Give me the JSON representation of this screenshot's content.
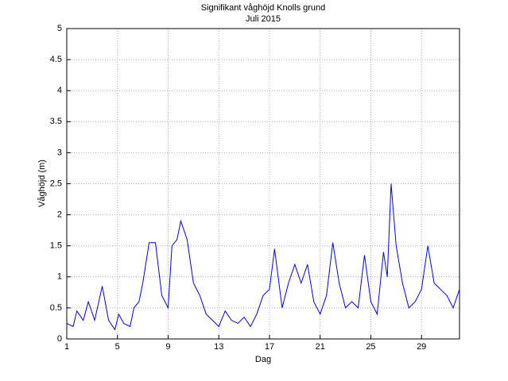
{
  "chart_data": {
    "type": "line",
    "title": "Signifikant våghöjd Knolls grund",
    "subtitle": "Juli 2015",
    "xlabel": "Dag",
    "ylabel": "Våghöjd (m)",
    "x": [
      1,
      1.5,
      1.8,
      2.3,
      2.7,
      3.2,
      3.8,
      4.3,
      4.8,
      5.1,
      5.5,
      6,
      6.3,
      6.7,
      7,
      7.5,
      8,
      8.5,
      9,
      9.3,
      9.7,
      10,
      10.5,
      11,
      11.5,
      12,
      12.5,
      13,
      13.5,
      14,
      14.5,
      15,
      15.5,
      16,
      16.5,
      17,
      17.4,
      18,
      18.5,
      19,
      19.5,
      20,
      20.5,
      21,
      21.5,
      22,
      22.5,
      23,
      23.5,
      24,
      24.5,
      25,
      25.5,
      26,
      26.3,
      26.6,
      27,
      27.5,
      28,
      28.5,
      29,
      29.5,
      30,
      30.5,
      31,
      31.5,
      32
    ],
    "series": [
      {
        "name": "Våghöjd",
        "color": "#0000ff",
        "values": [
          0.25,
          0.2,
          0.45,
          0.3,
          0.6,
          0.3,
          0.85,
          0.3,
          0.15,
          0.4,
          0.25,
          0.2,
          0.5,
          0.6,
          0.9,
          1.55,
          1.55,
          0.7,
          0.5,
          1.5,
          1.6,
          1.9,
          1.6,
          0.9,
          0.7,
          0.4,
          0.3,
          0.2,
          0.45,
          0.3,
          0.25,
          0.35,
          0.2,
          0.4,
          0.7,
          0.8,
          1.45,
          0.5,
          0.9,
          1.2,
          0.9,
          1.2,
          0.6,
          0.4,
          0.7,
          1.55,
          0.9,
          0.5,
          0.6,
          0.5,
          1.35,
          0.6,
          0.4,
          1.4,
          1.0,
          2.5,
          1.5,
          0.9,
          0.5,
          0.6,
          0.8,
          1.5,
          0.9,
          0.8,
          0.7,
          0.5,
          0.8
        ]
      }
    ],
    "xlim": [
      1,
      32
    ],
    "xticks": [
      1,
      5,
      9,
      13,
      17,
      21,
      25,
      29
    ],
    "ylim": [
      0,
      5
    ],
    "yticks": [
      0,
      0.5,
      1,
      1.5,
      2,
      2.5,
      3,
      3.5,
      4,
      4.5,
      5
    ],
    "grid": true
  }
}
